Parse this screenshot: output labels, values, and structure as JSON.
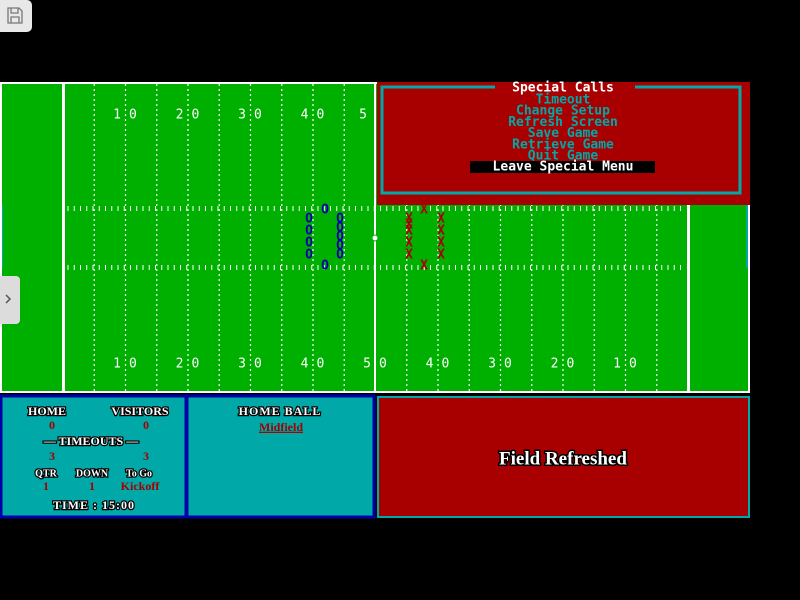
{
  "menu": {
    "title": "Special Calls",
    "items": [
      "Timeout",
      "Change Setup",
      "Refresh Screen",
      "Save Game",
      "Retrieve Game",
      "Quit Game",
      "Leave Special Menu"
    ]
  },
  "field": {
    "top_numbers": [
      "10",
      "20",
      "30",
      "40",
      "5"
    ],
    "bottom_numbers": [
      "10",
      "20",
      "30",
      "40",
      "50",
      "40",
      "30",
      "20",
      "10"
    ],
    "home_marker": "O",
    "visitor_marker": "X"
  },
  "scoreboard": {
    "home_label": "HOME",
    "visitors_label": "VISITORS",
    "home_score": "0",
    "visitors_score": "0",
    "timeouts_label": "— TIMEOUTS —",
    "home_timeouts": "3",
    "visitors_timeouts": "3",
    "qtr_label": "QTR",
    "down_label": "DOWN",
    "to_go_label": "To Go",
    "qtr": "1",
    "down": "1",
    "to_go": "Kickoff",
    "time": "TIME : 15:00"
  },
  "possession": {
    "label": "HOME BALL",
    "spot": "Midfield"
  },
  "message": "Field Refreshed"
}
